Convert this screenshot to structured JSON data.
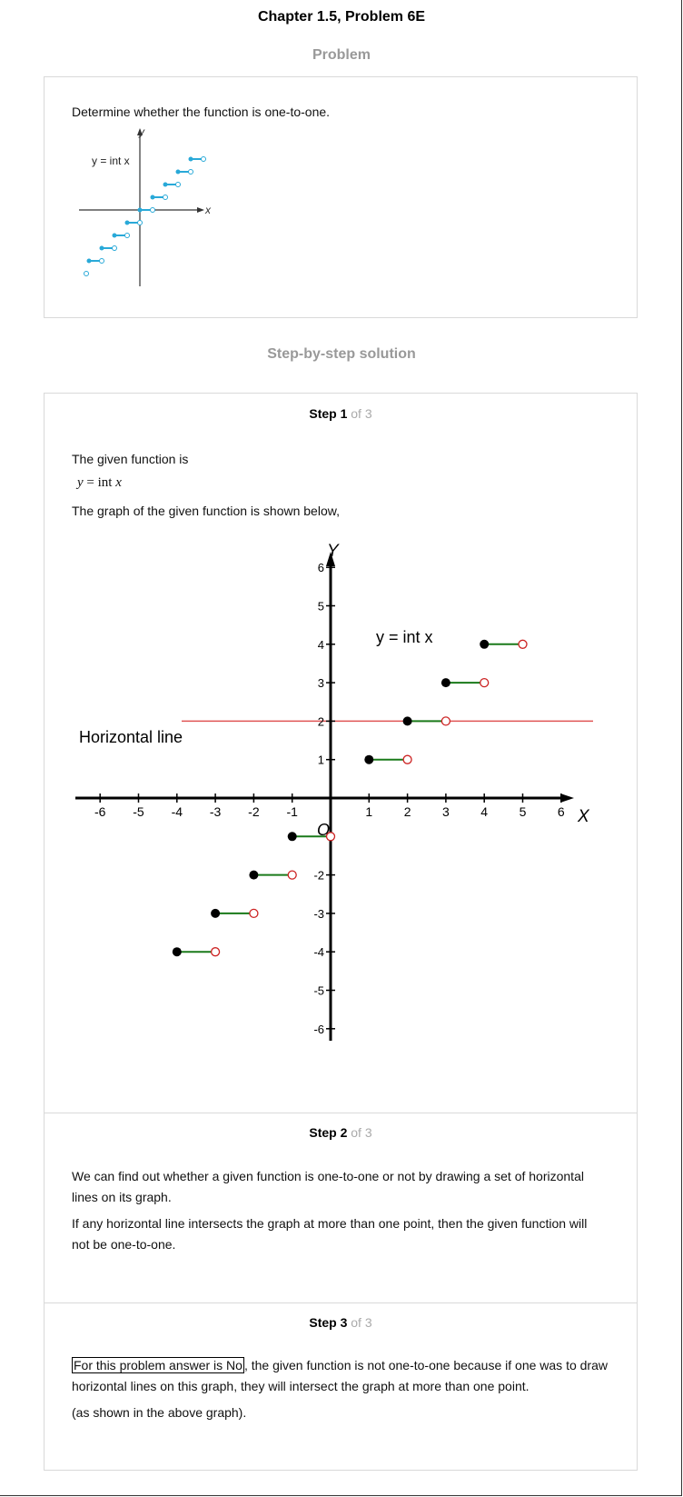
{
  "page": {
    "title": "Chapter 1.5, Problem 6E"
  },
  "problem": {
    "heading": "Problem",
    "statement": "Determine whether the function is one-to-one.",
    "figure": {
      "y_axis_label": "y",
      "x_axis_label": "x",
      "function_label": "y = int x",
      "colors": {
        "segment": "#29a9d8",
        "axis": "#333333"
      }
    }
  },
  "solution": {
    "heading": "Step-by-step solution",
    "steps": [
      {
        "label": "Step 1",
        "of": "of 3",
        "line1": "The given function is",
        "equation_left": "y",
        "equation_right": "= int",
        "equation_var": "x",
        "line2": "The graph of the given function is shown below,"
      },
      {
        "label": "Step 2",
        "of": "of 3",
        "para1": "We can find out whether a given function is one-to-one or not by drawing a set of horizontal lines on its graph.",
        "para2": "If any horizontal line intersects the graph at more than one point, then the given function will not be one-to-one."
      },
      {
        "label": "Step 3",
        "of": "of 3",
        "boxed": "For this problem answer is No",
        "rest": ", the given function is not one-to-one because if one was to draw horizontal lines on this graph, they will intersect the graph at more than one point.",
        "para2": "(as shown in the above graph)."
      }
    ]
  },
  "graph": {
    "x_axis_label": "X",
    "y_axis_label": "Y",
    "origin_label": "O",
    "function_label": "y = int x",
    "horizontal_line_label": "Horizontal line",
    "x_ticks": [
      "-6",
      "-5",
      "-4",
      "-3",
      "-2",
      "-1",
      "1",
      "2",
      "3",
      "4",
      "5",
      "6"
    ],
    "y_ticks": [
      "6",
      "5",
      "4",
      "3",
      "2",
      "1",
      "-2",
      "-3",
      "-4",
      "-5",
      "-6"
    ],
    "horizontal_line_y": 2,
    "steps": [
      {
        "y": -4,
        "x_start": -4,
        "x_end": -3
      },
      {
        "y": -3,
        "x_start": -3,
        "x_end": -2
      },
      {
        "y": -2,
        "x_start": -2,
        "x_end": -1
      },
      {
        "y": -1,
        "x_start": -1,
        "x_end": 0
      },
      {
        "y": 1,
        "x_start": 1,
        "x_end": 2
      },
      {
        "y": 2,
        "x_start": 2,
        "x_end": 3
      },
      {
        "y": 3,
        "x_start": 3,
        "x_end": 4
      },
      {
        "y": 4,
        "x_start": 4,
        "x_end": 5
      }
    ],
    "colors": {
      "segment": "#1a7a1a",
      "horizontal_line": "#e05555",
      "open_circle": "#cc2222",
      "closed_circle": "#000000",
      "axis": "#000000"
    }
  }
}
